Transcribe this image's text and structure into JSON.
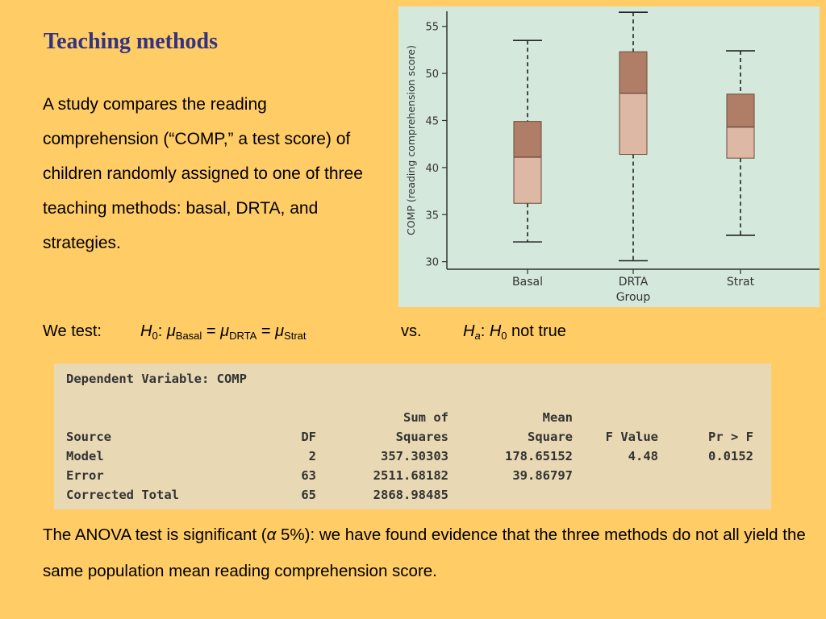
{
  "slide": {
    "title": "Teaching methods",
    "intro": "A study compares the reading comprehension (“COMP,” a test score) of children randomly assigned to one of three teaching methods: basal, DRTA, and strategies."
  },
  "hypotheses": {
    "lead": "We test:",
    "h0_symbol": "H",
    "h0_sub": "0",
    "colon": ": ",
    "mu": "μ",
    "sub_basal": "Basal",
    "sub_drta": "DRTA",
    "sub_strat": "Strat",
    "equals": " = ",
    "vs": "vs.",
    "ha_symbol": "H",
    "ha_sub": "a",
    "not_true": " not true"
  },
  "chart_data": {
    "type": "boxplot",
    "xlabel": "Group",
    "ylabel": "COMP (reading comprehension score)",
    "categories": [
      "Basal",
      "DRTA",
      "Strat"
    ],
    "yticks": [
      30,
      35,
      40,
      45,
      50,
      55
    ],
    "ylim": [
      29.2,
      56.6
    ],
    "boxes": [
      {
        "category": "Basal",
        "min": 32.1,
        "q1": 36.2,
        "median": 41.1,
        "q3": 44.9,
        "max": 53.5
      },
      {
        "category": "DRTA",
        "min": 30.1,
        "q1": 41.4,
        "median": 47.9,
        "q3": 52.3,
        "max": 56.5
      },
      {
        "category": "Strat",
        "min": 32.8,
        "q1": 41.0,
        "median": 44.3,
        "q3": 47.8,
        "max": 52.4
      }
    ],
    "colors": {
      "background": "#d4e8dc",
      "box_upper": "#b07d66",
      "box_lower": "#ddb8a4",
      "box_edge": "#6b4a3a",
      "axis": "#333333"
    }
  },
  "anova": {
    "dependent_label": "Dependent Variable: COMP",
    "headers_top": [
      "",
      "",
      "Sum of",
      "Mean",
      "",
      ""
    ],
    "headers": [
      "Source",
      "DF",
      "Squares",
      "Square",
      "F Value",
      "Pr > F"
    ],
    "rows": [
      [
        "Model",
        "2",
        "357.30303",
        "178.65152",
        "4.48",
        "0.0152"
      ],
      [
        "Error",
        "63",
        "2511.68182",
        "39.86797",
        "",
        ""
      ],
      [
        "Corrected Total",
        "65",
        "2868.98485",
        "",
        "",
        ""
      ]
    ]
  },
  "conclusion": {
    "before_alpha": "The ANOVA test is significant (",
    "alpha": "α",
    "after_alpha": " 5%): we have found evidence that the three methods do not all yield the same population mean reading comprehension score."
  }
}
